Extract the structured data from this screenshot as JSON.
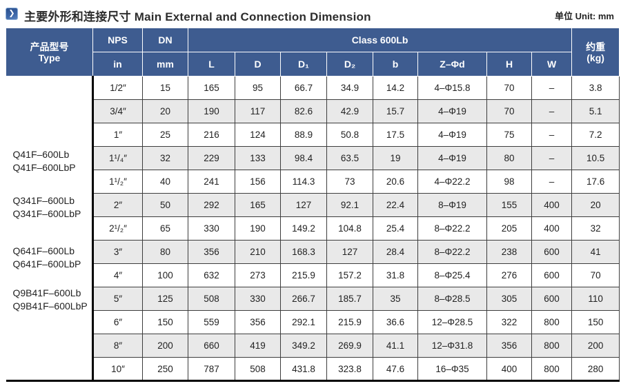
{
  "page": {
    "title_cn": "主要外形和连接尺寸",
    "title_en": "Main External and Connection Dimension",
    "unit_label": "单位 Unit: mm",
    "bullet_icon": "chevron-right",
    "accent_color": "#3E5C90",
    "stripe_color": "#E9E9E9"
  },
  "table": {
    "header": {
      "type_cn": "产品型号",
      "type_en": "Type",
      "nps": "NPS",
      "nps_unit": "in",
      "dn": "DN",
      "dn_unit": "mm",
      "class_group": "Class 600Lb",
      "dims": [
        "L",
        "D",
        "D₁",
        "D₂",
        "b",
        "Z–Φd",
        "H",
        "W"
      ],
      "weight_cn": "约重",
      "weight_unit": "(kg)"
    },
    "type_groups": [
      [
        "Q41F–600Lb",
        "Q41F–600LbP"
      ],
      [
        "Q341F–600Lb",
        "Q341F–600LbP"
      ],
      [
        "Q641F–600Lb",
        "Q641F–600LbP"
      ],
      [
        "Q9B41F–600Lb",
        "Q9B41F–600LbP"
      ]
    ],
    "rows": [
      [
        "1/2″",
        "15",
        "165",
        "95",
        "66.7",
        "34.9",
        "14.2",
        "4–Φ15.8",
        "70",
        "–",
        "3.8"
      ],
      [
        "3/4″",
        "20",
        "190",
        "117",
        "82.6",
        "42.9",
        "15.7",
        "4–Φ19",
        "70",
        "–",
        "5.1"
      ],
      [
        "1″",
        "25",
        "216",
        "124",
        "88.9",
        "50.8",
        "17.5",
        "4–Φ19",
        "75",
        "–",
        "7.2"
      ],
      [
        "1¹/₄″",
        "32",
        "229",
        "133",
        "98.4",
        "63.5",
        "19",
        "4–Φ19",
        "80",
        "–",
        "10.5"
      ],
      [
        "1¹/₂″",
        "40",
        "241",
        "156",
        "114.3",
        "73",
        "20.6",
        "4–Φ22.2",
        "98",
        "–",
        "17.6"
      ],
      [
        "2″",
        "50",
        "292",
        "165",
        "127",
        "92.1",
        "22.4",
        "8–Φ19",
        "155",
        "400",
        "20"
      ],
      [
        "2¹/₂″",
        "65",
        "330",
        "190",
        "149.2",
        "104.8",
        "25.4",
        "8–Φ22.2",
        "205",
        "400",
        "32"
      ],
      [
        "3″",
        "80",
        "356",
        "210",
        "168.3",
        "127",
        "28.4",
        "8–Φ22.2",
        "238",
        "600",
        "41"
      ],
      [
        "4″",
        "100",
        "632",
        "273",
        "215.9",
        "157.2",
        "31.8",
        "8–Φ25.4",
        "276",
        "600",
        "70"
      ],
      [
        "5″",
        "125",
        "508",
        "330",
        "266.7",
        "185.7",
        "35",
        "8–Φ28.5",
        "305",
        "600",
        "110"
      ],
      [
        "6″",
        "150",
        "559",
        "356",
        "292.1",
        "215.9",
        "36.6",
        "12–Φ28.5",
        "322",
        "800",
        "150"
      ],
      [
        "8″",
        "200",
        "660",
        "419",
        "349.2",
        "269.9",
        "41.1",
        "12–Φ31.8",
        "356",
        "800",
        "200"
      ],
      [
        "10″",
        "250",
        "787",
        "508",
        "431.8",
        "323.8",
        "47.6",
        "16–Φ35",
        "400",
        "800",
        "280"
      ]
    ]
  }
}
